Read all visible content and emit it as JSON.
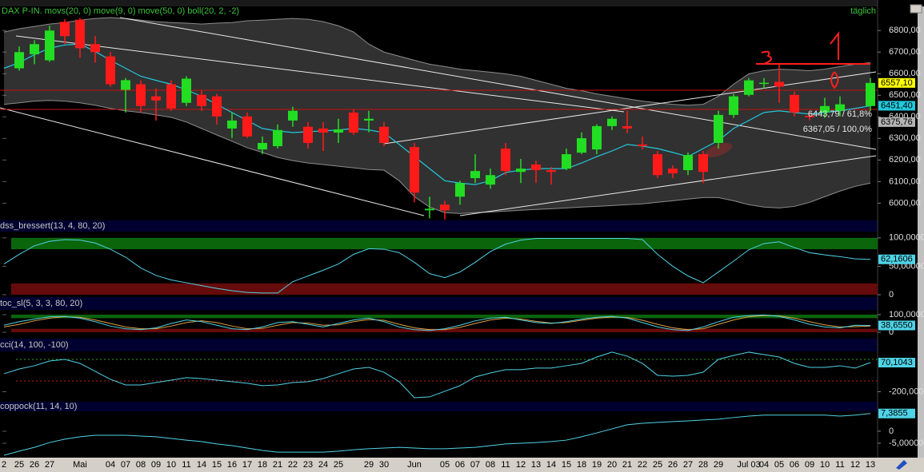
{
  "chart_data": [
    {
      "type": "candlestick",
      "title": "DAX P-IN. movs(20, 0) move(9, 0) move(50, 0) boll(20, 2, -2)",
      "period": "täglich",
      "categories": [
        "2",
        "25",
        "26",
        "27",
        null,
        "Mai",
        null,
        "04",
        "07",
        "08",
        "09",
        "10",
        "11",
        "14",
        "15",
        "16",
        "17",
        "18",
        "21",
        "22",
        "23",
        "24",
        "25",
        null,
        "29",
        "30",
        null,
        "Jun",
        null,
        "05",
        "06",
        "07",
        "08",
        "11",
        "12",
        "13",
        "14",
        "15",
        "18",
        "19",
        "20",
        "21",
        "22",
        "25",
        "26",
        "27",
        "28",
        "29",
        null,
        "Jul 03",
        "04",
        "05",
        "06",
        "09",
        "10",
        "11",
        "12",
        "13"
      ],
      "open": [
        null,
        6625,
        6690,
        6662,
        6840,
        6850,
        6737,
        6680,
        6525,
        6551,
        6495,
        6551,
        6465,
        6502,
        6495,
        6346,
        6402,
        6249,
        6264,
        6383,
        6354,
        6346,
        6327,
        6420,
        6383,
        6354,
        null,
        6260,
        5967,
        5993,
        6030,
        6116,
        6086,
        6253,
        6145,
        6179,
        6153,
        6160,
        6234,
        6249,
        6357,
        6357,
        6272,
        6227,
        6160,
        6153,
        6227,
        6279,
        6409,
        6502,
        6555,
        6562,
        6502,
        6405,
        6420,
        6428,
        null,
        6450
      ],
      "high": [
        null,
        6726,
        6755,
        6822,
        6852,
        6858,
        6774,
        6700,
        6580,
        6569,
        6532,
        6569,
        6588,
        6521,
        6506,
        6420,
        6420,
        6309,
        6365,
        6447,
        6376,
        6376,
        6391,
        6435,
        6428,
        6376,
        null,
        6279,
        6030,
        6011,
        6104,
        6227,
        6160,
        6279,
        6205,
        6197,
        6168,
        6253,
        6328,
        6365,
        6402,
        6428,
        6309,
        6242,
        6175,
        6235,
        6242,
        6428,
        6506,
        6580,
        6580,
        6644,
        6517,
        6420,
        6488,
        6495,
        null,
        6580
      ],
      "low": [
        null,
        6614,
        6644,
        6655,
        6737,
        6673,
        6651,
        6540,
        6420,
        6420,
        6383,
        6428,
        6450,
        6428,
        6365,
        6302,
        6302,
        6227,
        6253,
        6354,
        6253,
        6242,
        6279,
        6316,
        6328,
        6264,
        null,
        6004,
        5930,
        5925,
        5993,
        6093,
        6067,
        6130,
        6093,
        6093,
        6086,
        6153,
        6227,
        6227,
        6339,
        6324,
        6249,
        6116,
        6116,
        6130,
        6093,
        6253,
        6395,
        6495,
        6532,
        6465,
        6402,
        6383,
        6395,
        6402,
        null,
        6428
      ],
      "close": [
        null,
        6700,
        6737,
        6800,
        6774,
        6718,
        6700,
        6551,
        6570,
        6450,
        6476,
        6439,
        6577,
        6450,
        6402,
        6383,
        6309,
        6279,
        6339,
        6428,
        6279,
        6327,
        6342,
        6327,
        6391,
        6279,
        null,
        6049,
        5974,
        5967,
        6093,
        6149,
        6130,
        6149,
        6160,
        6153,
        6145,
        6227,
        6301,
        6357,
        6391,
        6346,
        6264,
        6130,
        6138,
        6223,
        6145,
        6409,
        6495,
        6569,
        6558,
        6540,
        6420,
        6398,
        6450,
        6458,
        null,
        6557.1
      ],
      "colors": {
        "up": "#22dd22",
        "down": "#ff1a1a"
      },
      "band": {
        "color": "#8c8c8c",
        "upper": [
          6793,
          6808,
          6819,
          6830,
          6837,
          6848,
          6856,
          6860,
          6856,
          6848,
          6841,
          6837,
          6834,
          6830,
          6834,
          6837,
          6845,
          6848,
          6852,
          6856,
          6852,
          6841,
          6822,
          6793,
          6737,
          6700,
          6681,
          6662,
          6644,
          6633,
          6621,
          6614,
          6607,
          6599,
          6588,
          6569,
          6551,
          6532,
          6521,
          6506,
          6495,
          6484,
          6473,
          6465,
          6458,
          6454,
          6458,
          6495,
          6551,
          6599,
          6614,
          6621,
          6618,
          6614,
          6621,
          6633,
          6644,
          6651
        ],
        "lower": [
          6458,
          6465,
          6473,
          6476,
          6473,
          6465,
          6454,
          6439,
          6428,
          6420,
          6409,
          6398,
          6376,
          6346,
          6316,
          6287,
          6257,
          6235,
          6212,
          6197,
          6186,
          6179,
          6171,
          6164,
          6156,
          6153,
          6104,
          6030,
          5982,
          5956,
          5952,
          5956,
          5959,
          5963,
          5967,
          5971,
          5974,
          5978,
          5982,
          5985,
          5989,
          5993,
          5997,
          6004,
          6011,
          6019,
          6026,
          6026,
          6011,
          5993,
          5982,
          5978,
          5985,
          6004,
          6030,
          6056,
          6078,
          6093
        ]
      },
      "lines": [
        {
          "color": "#22c8dc",
          "value_label": "6451,40",
          "values": [
            6625,
            6651,
            6688,
            6718,
            6733,
            6737,
            6703,
            6662,
            6625,
            6588,
            6569,
            6551,
            6525,
            6495,
            6458,
            6420,
            6383,
            6346,
            6335,
            6327,
            6331,
            6335,
            6339,
            6346,
            6339,
            6327,
            6272,
            6216,
            6160,
            6104,
            6093,
            6086,
            6104,
            6142,
            6153,
            6160,
            6160,
            6160,
            6186,
            6216,
            6242,
            6272,
            6264,
            6253,
            6235,
            6216,
            6253,
            6290,
            6346,
            6383,
            6420,
            6428,
            6420,
            6413,
            6420,
            6428,
            6439,
            6451.4
          ]
        }
      ],
      "close_label": "6557,10",
      "price_labels": [
        {
          "value": 6375.76,
          "label": "6375,76",
          "color": "#b4b4b4"
        }
      ],
      "annotations": [
        "6443,79 / 61,8%",
        "6367,05 / 100,0%"
      ],
      "ylim": [
        5920,
        6860
      ],
      "yticks": [
        {
          "value": 6000,
          "label": "6000,00"
        },
        {
          "value": 6100,
          "label": "6100,00"
        },
        {
          "value": 6200,
          "label": "6200,00"
        },
        {
          "value": 6300,
          "label": "6300,00"
        },
        {
          "value": 6400,
          "label": "6400,00"
        },
        {
          "value": 6500,
          "label": "6500,00"
        },
        {
          "value": 6600,
          "label": "6600,00"
        },
        {
          "value": 6700,
          "label": "6700,00"
        },
        {
          "value": 6800,
          "label": "6800,00"
        }
      ]
    },
    {
      "type": "line",
      "title": "dss_bressert(13, 4, 80, 20)",
      "zones": [
        {
          "from": 80,
          "to": 100,
          "color": "#0b650b"
        },
        {
          "from": 0,
          "to": 20,
          "color": "#650b0b"
        }
      ],
      "lines": [
        {
          "color": "#4fd3e6",
          "value_label": "62,1606",
          "values": [
            54,
            71,
            86,
            94,
            97,
            96,
            91,
            80,
            66,
            47,
            34,
            26,
            21,
            16,
            11,
            7,
            4,
            3,
            3,
            23,
            33,
            43,
            54,
            71,
            81,
            80,
            74,
            57,
            37,
            30,
            40,
            57,
            76,
            89,
            96,
            99,
            99,
            99,
            99,
            99,
            99,
            99,
            97,
            71,
            50,
            33,
            21,
            40,
            59,
            79,
            90,
            93,
            83,
            74,
            70,
            67,
            63,
            62.1606
          ]
        }
      ],
      "ylim": [
        -1.4,
        111
      ],
      "yticks": [
        {
          "value": 100,
          "label": "100,000000"
        },
        {
          "value": 50,
          "label": "50,000000"
        },
        0
      ]
    },
    {
      "type": "line",
      "title": "toc_sl(5, 3, 3, 80, 20)",
      "zones": [
        {
          "from": 80,
          "to": 100,
          "color": "#0b650b"
        },
        {
          "from": 0,
          "to": 20,
          "color": "#650b0b"
        }
      ],
      "lines": [
        {
          "color": "#e0a040",
          "values": [
            30,
            45,
            65,
            80,
            88,
            85,
            70,
            50,
            30,
            20,
            20,
            35,
            55,
            65,
            55,
            35,
            20,
            22,
            40,
            55,
            52,
            40,
            42,
            60,
            72,
            68,
            45,
            25,
            15,
            15,
            28,
            50,
            70,
            80,
            75,
            62,
            52,
            55,
            68,
            80,
            86,
            84,
            68,
            45,
            25,
            15,
            20,
            45,
            70,
            88,
            95,
            93,
            80,
            60,
            42,
            30,
            32,
            35
          ]
        },
        {
          "color": "#4fd3e6",
          "value_label": "38,6550",
          "values": [
            40,
            60,
            75,
            88,
            90,
            80,
            60,
            35,
            20,
            15,
            25,
            50,
            70,
            60,
            40,
            20,
            15,
            30,
            55,
            60,
            45,
            30,
            50,
            70,
            80,
            60,
            30,
            15,
            10,
            20,
            40,
            65,
            80,
            85,
            70,
            55,
            50,
            60,
            75,
            85,
            90,
            80,
            55,
            30,
            15,
            10,
            30,
            60,
            85,
            95,
            98,
            90,
            70,
            45,
            30,
            25,
            40,
            38.655
          ]
        }
      ],
      "ylim": [
        -27,
        127
      ],
      "yticks": [
        {
          "value": 100,
          "label": "100,000000"
        },
        0
      ]
    },
    {
      "type": "line",
      "title": "cci(14, 100, -100)",
      "levels": [
        {
          "value": 100,
          "color": "#2aa02a"
        },
        {
          "value": -100,
          "color": "#c02020"
        }
      ],
      "lines": [
        {
          "color": "#4fd3e6",
          "value_label": "70,1043",
          "values": [
            -33,
            11,
            41,
            85,
            100,
            63,
            -11,
            -85,
            -137,
            -137,
            -115,
            -93,
            -70,
            -78,
            -93,
            -107,
            -122,
            -144,
            -137,
            -115,
            -107,
            -78,
            -33,
            11,
            26,
            -19,
            -107,
            -256,
            -248,
            -196,
            -144,
            -63,
            -26,
            4,
            4,
            19,
            19,
            41,
            63,
            122,
            167,
            130,
            63,
            -48,
            -56,
            -48,
            -19,
            100,
            137,
            167,
            144,
            122,
            63,
            26,
            26,
            41,
            19,
            70.1043
          ]
        }
      ],
      "ylim": [
        -293,
        174
      ],
      "yticks": [
        {
          "value": -200,
          "label": "-200,000000"
        }
      ]
    },
    {
      "type": "line",
      "title": "coppock(11, 14, 10)",
      "lines": [
        {
          "color": "#4fd3e6",
          "value_label": "7,3855",
          "values": [
            -10,
            -8.3,
            -6.7,
            -4.7,
            -3.3,
            -2.3,
            -1.7,
            -1.7,
            -1.7,
            -2,
            -2.3,
            -3,
            -3.7,
            -4.3,
            -5.3,
            -6,
            -7,
            -8,
            -8.7,
            -8.7,
            -8.7,
            -8.7,
            -8.3,
            -7.7,
            -7.3,
            -7,
            -6.7,
            -7,
            -7.3,
            -7.3,
            -7,
            -6.7,
            -6,
            -5.3,
            -5,
            -4.7,
            -4.3,
            -3.7,
            -2.3,
            -0.7,
            1,
            2.7,
            3.3,
            3.7,
            4,
            4.3,
            4.7,
            5,
            5.7,
            6.3,
            6.7,
            6.7,
            6.7,
            6.7,
            6.7,
            6.3,
            6.7,
            7.3855
          ]
        }
      ],
      "ylim": [
        -10,
        8.3
      ],
      "yticks": [
        0,
        {
          "value": -5,
          "label": "-5,000000"
        }
      ]
    }
  ]
}
